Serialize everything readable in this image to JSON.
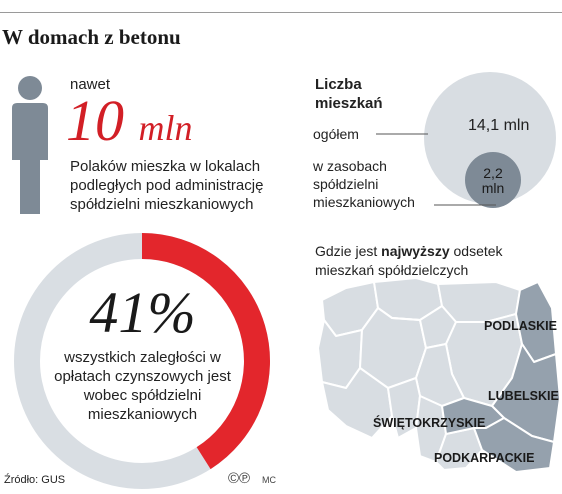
{
  "title": "W domach z betonu",
  "intro": {
    "prefix": "nawet",
    "number": "10",
    "unit": "mln",
    "text": "Polaków mieszka w lokalach podległych pod administrację spółdzielni mieszkaniowych"
  },
  "arrears": {
    "percent": "41%",
    "share": 0.41,
    "text": "wszystkich zaległości w opłatach czynszowych jest wobec spółdzielni mieszkaniowych"
  },
  "residents": {
    "title": "Liczba mieszkań",
    "total_label": "ogółem",
    "total_value": "14,1 mln",
    "coop_label": "w zasobach spółdzielni mieszkaniowych",
    "coop_value": "2,2 mln"
  },
  "map": {
    "caption_pre": "Gdzie jest ",
    "caption_bold": "najwyższy",
    "caption_post": " odsetek mieszkań spółdzielczych",
    "regions": [
      "PODLASKIE",
      "LUBELSKIE",
      "ŚWIĘTOKRZYSKIE",
      "PODKARPACKIE"
    ]
  },
  "footer": {
    "source": "Źródło: GUS",
    "copyright": "©℗",
    "author": "MC"
  },
  "colors": {
    "accent_red": "#e3262c",
    "ring_gray": "#d9dee3",
    "circle_gray": "#d8dde2",
    "highlight_region": "#95a1ad",
    "person_gray": "#7e8a96"
  }
}
